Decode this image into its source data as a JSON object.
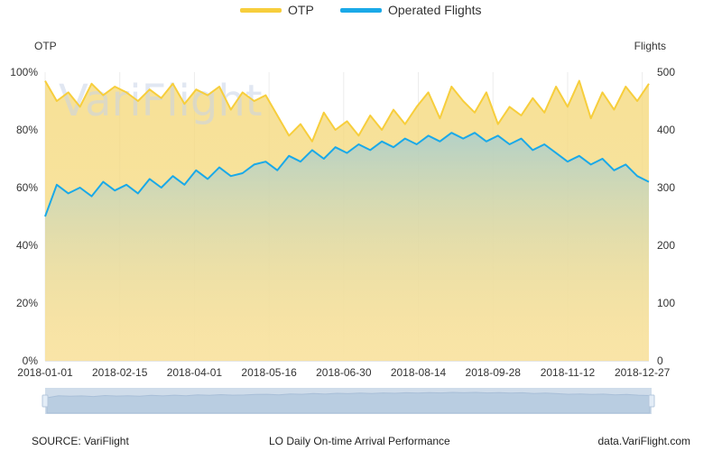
{
  "legend": [
    {
      "label": "OTP",
      "color": "#f7ce3c"
    },
    {
      "label": "Operated Flights",
      "color": "#1aa9e8"
    }
  ],
  "watermark": "VariFlight",
  "footer": {
    "source": "SOURCE: VariFlight",
    "title": "LO  Daily On-time Arrival Performance",
    "site": "data.VariFlight.com"
  },
  "chart_data": {
    "type": "line",
    "y_left": {
      "title": "OTP",
      "min": 0,
      "max": 100,
      "ticks": [
        "0%",
        "20%",
        "40%",
        "60%",
        "80%",
        "100%"
      ]
    },
    "y_right": {
      "title": "Flights",
      "min": 0,
      "max": 500,
      "ticks": [
        "0",
        "100",
        "200",
        "300",
        "400",
        "500"
      ]
    },
    "x_ticks": [
      "2018-01-01",
      "2018-02-15",
      "2018-04-01",
      "2018-05-16",
      "2018-06-30",
      "2018-08-14",
      "2018-09-28",
      "2018-11-12",
      "2018-12-27"
    ],
    "x_range": [
      "2018-01-01",
      "2018-12-31"
    ],
    "grid": "vertical",
    "legend_position": "top-center",
    "series": [
      {
        "name": "OTP",
        "axis": "left",
        "color": "#f7ce3c",
        "area": true,
        "sample_interval_days": 7,
        "x": [
          "2018-01-01",
          "2018-01-08",
          "2018-01-15",
          "2018-01-22",
          "2018-01-29",
          "2018-02-05",
          "2018-02-12",
          "2018-02-19",
          "2018-02-26",
          "2018-03-05",
          "2018-03-12",
          "2018-03-19",
          "2018-03-26",
          "2018-04-02",
          "2018-04-09",
          "2018-04-16",
          "2018-04-23",
          "2018-04-30",
          "2018-05-07",
          "2018-05-14",
          "2018-05-21",
          "2018-05-28",
          "2018-06-04",
          "2018-06-11",
          "2018-06-18",
          "2018-06-25",
          "2018-07-02",
          "2018-07-09",
          "2018-07-16",
          "2018-07-23",
          "2018-07-30",
          "2018-08-06",
          "2018-08-13",
          "2018-08-20",
          "2018-08-27",
          "2018-09-03",
          "2018-09-10",
          "2018-09-17",
          "2018-09-24",
          "2018-10-01",
          "2018-10-08",
          "2018-10-15",
          "2018-10-22",
          "2018-10-29",
          "2018-11-05",
          "2018-11-12",
          "2018-11-19",
          "2018-11-26",
          "2018-12-03",
          "2018-12-10",
          "2018-12-17",
          "2018-12-24",
          "2018-12-31"
        ],
        "values": [
          97,
          90,
          93,
          88,
          96,
          92,
          95,
          93,
          90,
          94,
          91,
          96,
          89,
          94,
          92,
          95,
          87,
          93,
          90,
          92,
          85,
          78,
          82,
          76,
          86,
          80,
          83,
          78,
          85,
          80,
          87,
          82,
          88,
          93,
          84,
          95,
          90,
          86,
          93,
          82,
          88,
          85,
          91,
          86,
          95,
          88,
          97,
          84,
          93,
          87,
          95,
          90,
          96
        ]
      },
      {
        "name": "Operated Flights",
        "axis": "right",
        "color": "#1aa9e8",
        "area": false,
        "sample_interval_days": 7,
        "x": [
          "2018-01-01",
          "2018-01-08",
          "2018-01-15",
          "2018-01-22",
          "2018-01-29",
          "2018-02-05",
          "2018-02-12",
          "2018-02-19",
          "2018-02-26",
          "2018-03-05",
          "2018-03-12",
          "2018-03-19",
          "2018-03-26",
          "2018-04-02",
          "2018-04-09",
          "2018-04-16",
          "2018-04-23",
          "2018-04-30",
          "2018-05-07",
          "2018-05-14",
          "2018-05-21",
          "2018-05-28",
          "2018-06-04",
          "2018-06-11",
          "2018-06-18",
          "2018-06-25",
          "2018-07-02",
          "2018-07-09",
          "2018-07-16",
          "2018-07-23",
          "2018-07-30",
          "2018-08-06",
          "2018-08-13",
          "2018-08-20",
          "2018-08-27",
          "2018-09-03",
          "2018-09-10",
          "2018-09-17",
          "2018-09-24",
          "2018-10-01",
          "2018-10-08",
          "2018-10-15",
          "2018-10-22",
          "2018-10-29",
          "2018-11-05",
          "2018-11-12",
          "2018-11-19",
          "2018-11-26",
          "2018-12-03",
          "2018-12-10",
          "2018-12-17",
          "2018-12-24",
          "2018-12-31"
        ],
        "values": [
          250,
          305,
          290,
          300,
          285,
          310,
          295,
          305,
          290,
          315,
          300,
          320,
          305,
          330,
          315,
          335,
          320,
          325,
          340,
          345,
          330,
          355,
          345,
          365,
          350,
          370,
          360,
          375,
          365,
          380,
          370,
          385,
          375,
          390,
          380,
          395,
          385,
          395,
          380,
          390,
          375,
          385,
          365,
          375,
          360,
          345,
          355,
          340,
          350,
          330,
          340,
          320,
          310
        ]
      }
    ]
  }
}
